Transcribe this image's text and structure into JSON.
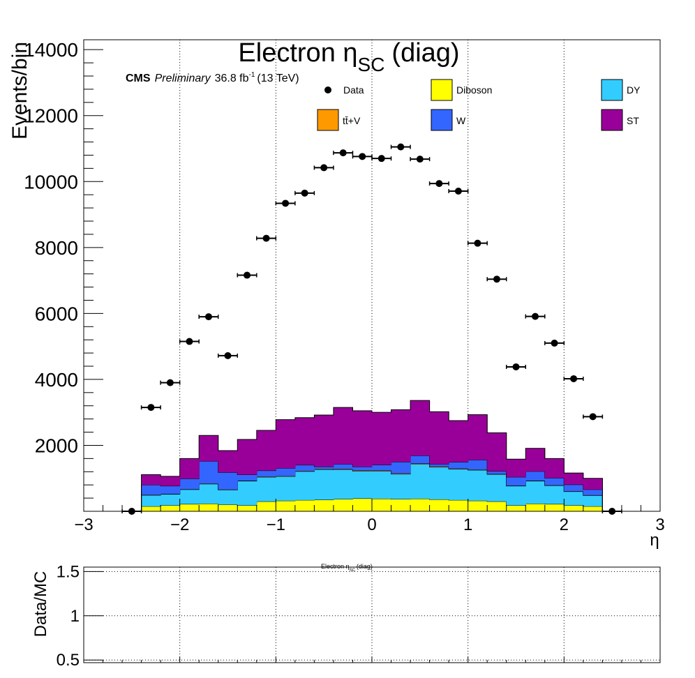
{
  "chart_data": [
    {
      "type": "bar",
      "stacked": true,
      "title": "Electron η",
      "title_sub": "SC",
      "title_suffix": "(diag)",
      "cms_label": "CMS",
      "preliminary_label": "Preliminary",
      "lumi_prefix": "36.8 fb",
      "lumi_exp": "-1",
      "lumi_suffix": "(13 TeV)",
      "xlabel": "η",
      "ylabel": "Events/bin",
      "xlim": [
        -3,
        3
      ],
      "ylim": [
        0,
        14300
      ],
      "x_ticks": [
        -3,
        -2,
        -1,
        0,
        1,
        2,
        3
      ],
      "x_tick_labels": [
        "−3",
        "−2",
        "−1",
        "0",
        "1",
        "2",
        "3"
      ],
      "y_ticks": [
        2000,
        4000,
        6000,
        8000,
        10000,
        12000,
        14000
      ],
      "y_tick_labels": [
        "2000",
        "4000",
        "6000",
        "8000",
        "10000",
        "12000",
        "14000"
      ],
      "grid_x": true,
      "grid_y": false,
      "bin_edges": [
        -2.4,
        -2.2,
        -2.0,
        -1.8,
        -1.6,
        -1.4,
        -1.2,
        -1.0,
        -0.8,
        -0.6,
        -0.4,
        -0.2,
        0.0,
        0.2,
        0.4,
        0.6,
        0.8,
        1.0,
        1.2,
        1.4,
        1.6,
        1.8,
        2.0,
        2.2,
        2.4
      ],
      "colors": {
        "Diboson": "#ffff00",
        "DY": "#33ccff",
        "W": "#3366ff",
        "ttV": "#ff9900",
        "ST": "#990099",
        "Data": "#000000"
      },
      "series": [
        {
          "name": "Diboson",
          "key": "Diboson",
          "values": [
            150,
            180,
            220,
            230,
            200,
            180,
            300,
            320,
            340,
            350,
            370,
            390,
            380,
            370,
            380,
            360,
            340,
            320,
            300,
            180,
            230,
            220,
            180,
            150
          ]
        },
        {
          "name": "DY",
          "key": "DY",
          "values": [
            340,
            340,
            440,
            600,
            450,
            740,
            740,
            740,
            870,
            920,
            890,
            830,
            840,
            760,
            1050,
            980,
            940,
            930,
            820,
            590,
            690,
            560,
            420,
            330
          ]
        },
        {
          "name": "tt̄+V",
          "key": "ttV",
          "values": [
            10,
            10,
            10,
            10,
            10,
            10,
            15,
            15,
            15,
            15,
            20,
            20,
            20,
            20,
            20,
            20,
            15,
            15,
            15,
            10,
            10,
            10,
            10,
            10
          ]
        },
        {
          "name": "W",
          "key": "W",
          "values": [
            300,
            240,
            320,
            680,
            520,
            180,
            180,
            230,
            180,
            70,
            150,
            110,
            170,
            350,
            240,
            70,
            200,
            295,
            85,
            260,
            280,
            220,
            200,
            170
          ]
        },
        {
          "name": "ST",
          "key": "ST",
          "values": [
            310,
            290,
            610,
            780,
            660,
            1070,
            1220,
            1475,
            1435,
            1565,
            1720,
            1700,
            1590,
            1580,
            1670,
            1590,
            1255,
            1370,
            1160,
            540,
            700,
            590,
            350,
            340
          ]
        }
      ],
      "data": {
        "name": "Data",
        "x": [
          -2.5,
          -2.3,
          -2.1,
          -1.9,
          -1.7,
          -1.5,
          -1.3,
          -1.1,
          -0.9,
          -0.7,
          -0.5,
          -0.3,
          -0.1,
          0.1,
          0.3,
          0.5,
          0.7,
          0.9,
          1.1,
          1.3,
          1.5,
          1.7,
          1.9,
          2.1,
          2.3,
          2.5
        ],
        "y": [
          0,
          3150,
          3900,
          5150,
          5900,
          4720,
          7160,
          8280,
          9340,
          9650,
          10420,
          10870,
          10760,
          10700,
          11050,
          10680,
          9940,
          9710,
          8130,
          7040,
          4380,
          5910,
          5100,
          4020,
          2870,
          0
        ],
        "xerr": 0.1
      },
      "legend_position": "top"
    },
    {
      "type": "line",
      "title": "Electron η",
      "title_sub": "SC",
      "title_suffix": "(diag)",
      "ylabel": "Data/MC",
      "xlim": [
        -3,
        3
      ],
      "ylim": [
        0.47,
        1.55
      ],
      "y_ticks": [
        0.5,
        1,
        1.5
      ],
      "y_tick_labels": [
        "0.5",
        "1",
        "1.5"
      ],
      "grid_x": true,
      "grid_y": true,
      "series": []
    }
  ]
}
